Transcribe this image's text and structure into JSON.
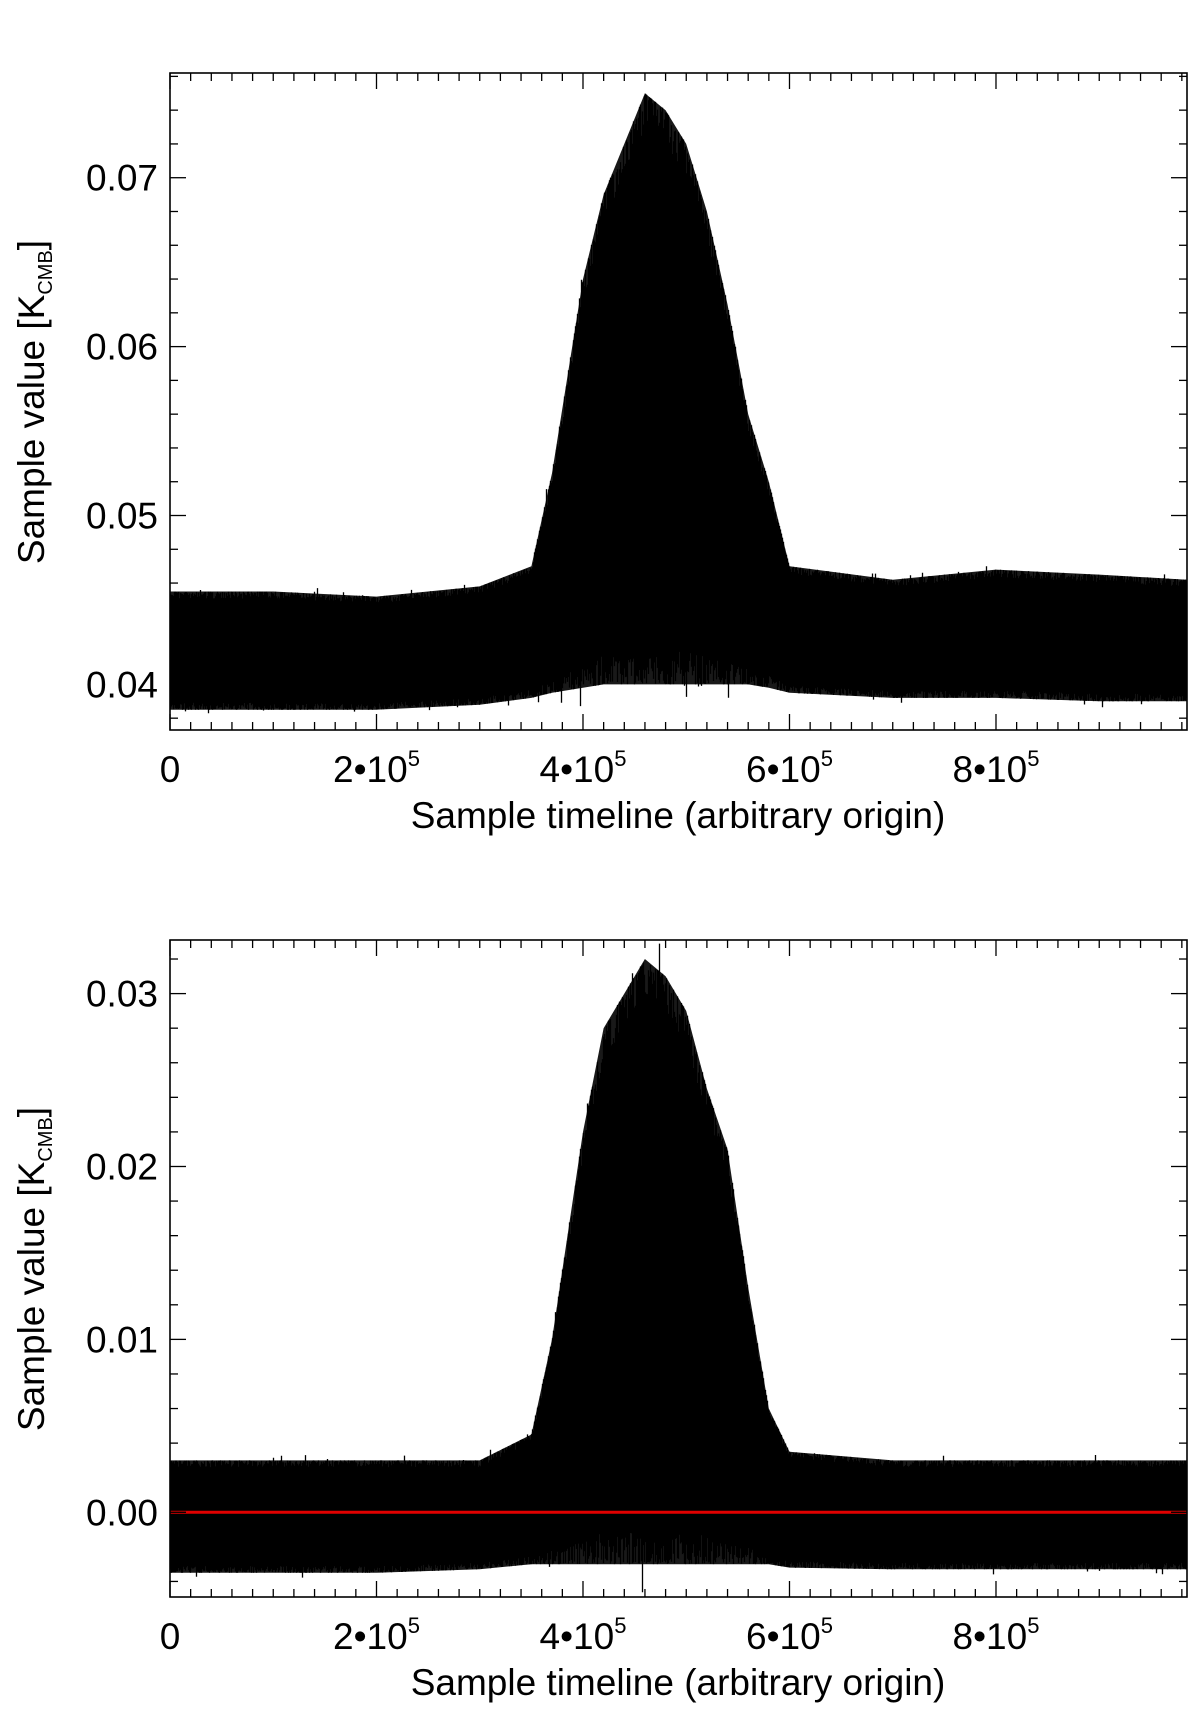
{
  "chart_data": [
    {
      "type": "line",
      "panel": "top",
      "xlabel": "Sample timeline (arbitrary origin)",
      "ylabel": "Sample value [K",
      "ylabel_sub": "CMB",
      "ylabel_close": "]",
      "xlim": [
        0,
        985000
      ],
      "ylim": [
        0.0373,
        0.0762
      ],
      "x_ticks": [
        {
          "value": 0,
          "mantissa": "0",
          "exponent": ""
        },
        {
          "value": 200000,
          "mantissa": "2•10",
          "exponent": "5"
        },
        {
          "value": 400000,
          "mantissa": "4•10",
          "exponent": "5"
        },
        {
          "value": 600000,
          "mantissa": "6•10",
          "exponent": "5"
        },
        {
          "value": 800000,
          "mantissa": "8•10",
          "exponent": "5"
        }
      ],
      "y_ticks": [
        {
          "value": 0.04,
          "label": "0.04"
        },
        {
          "value": 0.05,
          "label": "0.05"
        },
        {
          "value": 0.06,
          "label": "0.06"
        },
        {
          "value": 0.07,
          "label": "0.07"
        }
      ],
      "series": [
        {
          "color": "#000000",
          "x": [
            0,
            100000,
            200000,
            300000,
            350000,
            370000,
            400000,
            420000,
            440000,
            460000,
            480000,
            500000,
            520000,
            540000,
            560000,
            580000,
            600000,
            700000,
            800000,
            900000,
            985000
          ],
          "ymin": [
            0.0385,
            0.0385,
            0.0385,
            0.0388,
            0.0392,
            0.0395,
            0.0398,
            0.04,
            0.04,
            0.04,
            0.04,
            0.04,
            0.04,
            0.04,
            0.04,
            0.0398,
            0.0395,
            0.0392,
            0.0392,
            0.039,
            0.039
          ],
          "ymax": [
            0.0455,
            0.0455,
            0.0452,
            0.0458,
            0.047,
            0.0525,
            0.064,
            0.069,
            0.072,
            0.075,
            0.074,
            0.072,
            0.068,
            0.0625,
            0.056,
            0.052,
            0.047,
            0.0462,
            0.0468,
            0.0465,
            0.0462
          ]
        }
      ]
    },
    {
      "type": "line",
      "panel": "bottom",
      "xlabel": "Sample timeline (arbitrary origin)",
      "ylabel": "Sample value [K",
      "ylabel_sub": "CMB",
      "ylabel_close": "]",
      "xlim": [
        0,
        985000
      ],
      "ylim": [
        -0.0049,
        0.0331
      ],
      "x_ticks": [
        {
          "value": 0,
          "mantissa": "0",
          "exponent": ""
        },
        {
          "value": 200000,
          "mantissa": "2•10",
          "exponent": "5"
        },
        {
          "value": 400000,
          "mantissa": "4•10",
          "exponent": "5"
        },
        {
          "value": 600000,
          "mantissa": "6•10",
          "exponent": "5"
        },
        {
          "value": 800000,
          "mantissa": "8•10",
          "exponent": "5"
        }
      ],
      "y_ticks": [
        {
          "value": 0.0,
          "label": "0.00"
        },
        {
          "value": 0.01,
          "label": "0.01"
        },
        {
          "value": 0.02,
          "label": "0.02"
        },
        {
          "value": 0.03,
          "label": "0.03"
        }
      ],
      "series": [
        {
          "color": "#000000",
          "x": [
            0,
            100000,
            200000,
            300000,
            350000,
            370000,
            400000,
            420000,
            440000,
            460000,
            480000,
            500000,
            520000,
            540000,
            560000,
            580000,
            600000,
            700000,
            800000,
            900000,
            985000
          ],
          "ymin": [
            -0.0035,
            -0.0035,
            -0.0035,
            -0.0033,
            -0.003,
            -0.003,
            -0.003,
            -0.003,
            -0.003,
            -0.003,
            -0.003,
            -0.003,
            -0.003,
            -0.003,
            -0.003,
            -0.003,
            -0.0032,
            -0.0033,
            -0.0033,
            -0.0033,
            -0.0033
          ],
          "ymax": [
            0.003,
            0.003,
            0.003,
            0.003,
            0.0045,
            0.01,
            0.022,
            0.028,
            0.03,
            0.032,
            0.031,
            0.029,
            0.0245,
            0.021,
            0.013,
            0.006,
            0.0035,
            0.003,
            0.003,
            0.003,
            0.003
          ]
        }
      ],
      "reference_line": {
        "y": 0.0,
        "color": "#e00000"
      }
    }
  ]
}
